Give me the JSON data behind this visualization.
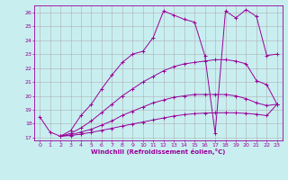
{
  "xlabel": "Windchill (Refroidissement éolien,°C)",
  "bg_color": "#c8eef0",
  "line_color": "#990099",
  "grid_color": "#b0b0b0",
  "xlim": [
    -0.5,
    23.5
  ],
  "ylim": [
    16.8,
    26.5
  ],
  "yticks": [
    17,
    18,
    19,
    20,
    21,
    22,
    23,
    24,
    25,
    26
  ],
  "xticks": [
    0,
    1,
    2,
    3,
    4,
    5,
    6,
    7,
    8,
    9,
    10,
    11,
    12,
    13,
    14,
    15,
    16,
    17,
    18,
    19,
    20,
    21,
    22,
    23
  ],
  "line1_x": [
    0,
    1,
    2,
    3,
    4,
    5,
    6,
    7,
    8,
    9,
    10,
    11,
    12,
    13,
    14,
    15,
    16,
    17,
    18,
    19,
    20,
    21,
    22,
    23
  ],
  "line1_y": [
    18.5,
    17.4,
    17.1,
    17.5,
    18.6,
    19.4,
    20.5,
    21.5,
    22.4,
    23.0,
    23.2,
    24.2,
    26.1,
    25.8,
    25.5,
    25.3,
    22.9,
    17.3,
    26.1,
    25.6,
    26.2,
    25.7,
    22.9,
    23.0
  ],
  "line2_x": [
    2,
    3,
    4,
    5,
    6,
    7,
    8,
    9,
    10,
    11,
    12,
    13,
    14,
    15,
    16,
    17,
    18,
    19,
    20,
    21,
    22,
    23
  ],
  "line2_y": [
    17.1,
    17.3,
    17.7,
    18.2,
    18.8,
    19.4,
    20.0,
    20.5,
    21.0,
    21.4,
    21.8,
    22.1,
    22.3,
    22.4,
    22.5,
    22.6,
    22.6,
    22.5,
    22.3,
    21.1,
    20.8,
    19.4
  ],
  "line3_x": [
    2,
    3,
    4,
    5,
    6,
    7,
    8,
    9,
    10,
    11,
    12,
    13,
    14,
    15,
    16,
    17,
    18,
    19,
    20,
    21,
    22,
    23
  ],
  "line3_y": [
    17.1,
    17.2,
    17.4,
    17.6,
    17.9,
    18.2,
    18.6,
    18.9,
    19.2,
    19.5,
    19.7,
    19.9,
    20.0,
    20.1,
    20.1,
    20.1,
    20.1,
    20.0,
    19.8,
    19.5,
    19.3,
    19.4
  ],
  "line4_x": [
    2,
    3,
    4,
    5,
    6,
    7,
    8,
    9,
    10,
    11,
    12,
    13,
    14,
    15,
    16,
    17,
    18,
    19,
    20,
    21,
    22,
    23
  ],
  "line4_y": [
    17.1,
    17.15,
    17.25,
    17.38,
    17.52,
    17.67,
    17.83,
    17.98,
    18.12,
    18.27,
    18.41,
    18.55,
    18.65,
    18.72,
    18.76,
    18.78,
    18.79,
    18.78,
    18.74,
    18.68,
    18.58,
    19.4
  ]
}
